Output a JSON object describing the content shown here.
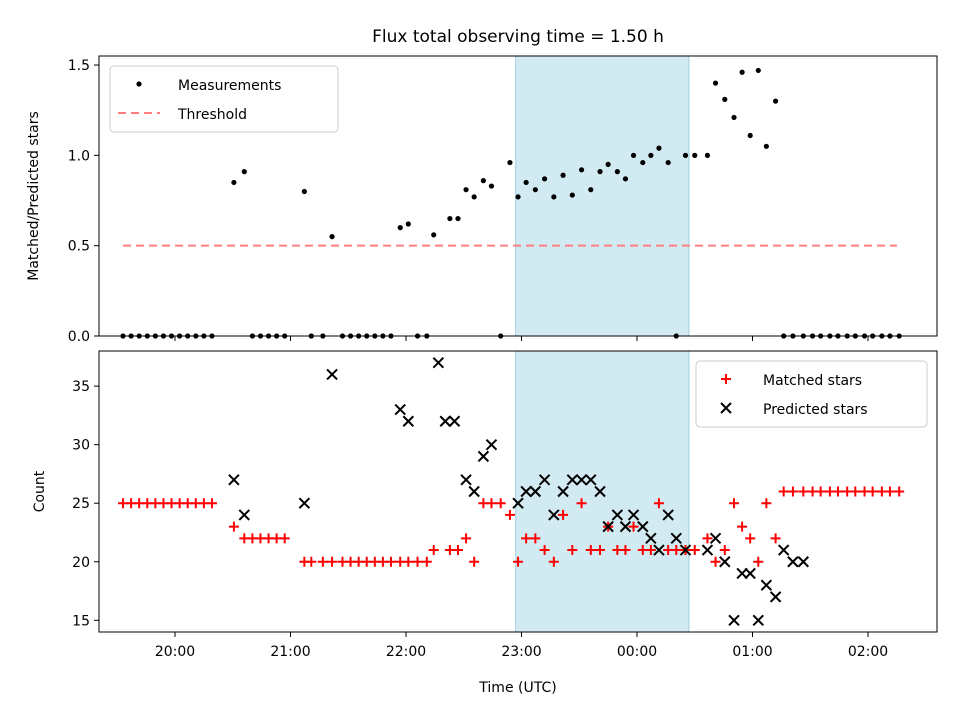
{
  "figure": {
    "title": "Flux total observing time = 1.50 h",
    "xlabel": "Time (UTC)",
    "x_ticks": [
      "20:00",
      "21:00",
      "22:00",
      "23:00",
      "00:00",
      "01:00",
      "02:00"
    ],
    "x_tick_hours": [
      20,
      21,
      22,
      23,
      24,
      25,
      26
    ],
    "highlight_span_hours": [
      22.95,
      24.45
    ],
    "colors": {
      "measurements": "#000000",
      "threshold": "#ff7f7f",
      "matched": "#ff0000",
      "predicted": "#000000",
      "highlight": "#add8e6"
    }
  },
  "chart_data": [
    {
      "type": "scatter",
      "ylabel": "Matched/Predicted stars",
      "ylim": [
        0,
        1.55
      ],
      "y_ticks": [
        "0.0",
        "0.5",
        "1.0",
        "1.5"
      ],
      "y_tick_values": [
        0,
        0.5,
        1.0,
        1.5
      ],
      "legend": {
        "placement": "top-left",
        "entries": [
          "Measurements",
          "Threshold"
        ]
      },
      "threshold": {
        "name": "Threshold",
        "value": 0.5,
        "x_range": [
          19.55,
          26.25
        ]
      },
      "series": [
        {
          "name": "Measurements",
          "x": [
            19.55,
            19.62,
            19.69,
            19.76,
            19.83,
            19.9,
            19.97,
            20.04,
            20.11,
            20.18,
            20.25,
            20.32,
            20.51,
            20.6,
            20.67,
            20.74,
            20.81,
            20.88,
            20.95,
            21.12,
            21.18,
            21.28,
            21.36,
            21.45,
            21.52,
            21.59,
            21.66,
            21.73,
            21.8,
            21.87,
            21.95,
            22.02,
            22.1,
            22.18,
            22.24,
            22.38,
            22.45,
            22.52,
            22.59,
            22.67,
            22.74,
            22.82,
            22.9,
            22.97,
            23.04,
            23.12,
            23.2,
            23.28,
            23.36,
            23.44,
            23.52,
            23.6,
            23.68,
            23.75,
            23.83,
            23.9,
            23.97,
            24.05,
            24.12,
            24.19,
            24.27,
            24.34,
            24.42,
            24.5,
            24.61,
            24.68,
            24.76,
            24.84,
            24.91,
            24.98,
            25.05,
            25.12,
            25.2,
            25.27,
            25.35,
            25.44,
            25.52,
            25.59,
            25.67,
            25.74,
            25.82,
            25.89,
            25.97,
            26.04,
            26.12,
            26.19,
            26.27
          ],
          "y": [
            0,
            0,
            0,
            0,
            0,
            0,
            0,
            0,
            0,
            0,
            0,
            0,
            0.85,
            0.91,
            0,
            0,
            0,
            0,
            0,
            0.8,
            0,
            0,
            0.55,
            0,
            0,
            0,
            0,
            0,
            0,
            0,
            0.6,
            0.62,
            0,
            0,
            0.56,
            0.65,
            0.65,
            0.81,
            0.77,
            0.86,
            0.83,
            0,
            0.96,
            0.77,
            0.85,
            0.81,
            0.87,
            0.77,
            0.89,
            0.78,
            0.92,
            0.81,
            0.91,
            0.95,
            0.91,
            0.87,
            1.0,
            0.96,
            1.0,
            1.04,
            0.96,
            0,
            1.0,
            1.0,
            1.0,
            1.4,
            1.31,
            1.21,
            1.46,
            1.11,
            1.47,
            1.05,
            1.3,
            0,
            0,
            0,
            0,
            0,
            0,
            0,
            0,
            0,
            0,
            0,
            0,
            0,
            0
          ]
        }
      ]
    },
    {
      "type": "scatter",
      "ylabel": "Count",
      "ylim": [
        14,
        38
      ],
      "y_ticks": [
        "15",
        "20",
        "25",
        "30",
        "35"
      ],
      "y_tick_values": [
        15,
        20,
        25,
        30,
        35
      ],
      "legend": {
        "placement": "top-right",
        "entries": [
          "Matched stars",
          "Predicted stars"
        ]
      },
      "series": [
        {
          "name": "Matched stars",
          "x": [
            19.55,
            19.62,
            19.69,
            19.76,
            19.83,
            19.9,
            19.97,
            20.04,
            20.11,
            20.18,
            20.25,
            20.32,
            20.51,
            20.6,
            20.67,
            20.74,
            20.81,
            20.88,
            20.95,
            21.12,
            21.18,
            21.28,
            21.36,
            21.45,
            21.52,
            21.59,
            21.66,
            21.73,
            21.8,
            21.87,
            21.95,
            22.02,
            22.1,
            22.18,
            22.24,
            22.38,
            22.45,
            22.52,
            22.59,
            22.67,
            22.74,
            22.82,
            22.9,
            22.97,
            23.04,
            23.12,
            23.2,
            23.28,
            23.36,
            23.44,
            23.52,
            23.6,
            23.68,
            23.75,
            23.83,
            23.9,
            23.97,
            24.05,
            24.12,
            24.19,
            24.27,
            24.34,
            24.42,
            24.5,
            24.61,
            24.68,
            24.76,
            24.84,
            24.91,
            24.98,
            25.05,
            25.12,
            25.2,
            25.27,
            25.35,
            25.44,
            25.52,
            25.59,
            25.67,
            25.74,
            25.82,
            25.89,
            25.97,
            26.04,
            26.12,
            26.19,
            26.27
          ],
          "y": [
            25,
            25,
            25,
            25,
            25,
            25,
            25,
            25,
            25,
            25,
            25,
            25,
            23,
            22,
            22,
            22,
            22,
            22,
            22,
            20,
            20,
            20,
            20,
            20,
            20,
            20,
            20,
            20,
            20,
            20,
            20,
            20,
            20,
            20,
            21,
            21,
            21,
            22,
            20,
            25,
            25,
            25,
            24,
            20,
            22,
            22,
            21,
            20,
            24,
            21,
            25,
            21,
            21,
            23,
            21,
            21,
            23,
            21,
            21,
            25,
            21,
            21,
            21,
            21,
            22,
            20,
            21,
            25,
            23,
            22,
            20,
            25,
            22,
            26,
            26,
            26,
            26,
            26,
            26,
            26,
            26,
            26,
            26,
            26,
            26,
            26,
            26
          ]
        },
        {
          "name": "Predicted stars",
          "x": [
            20.51,
            20.6,
            21.12,
            21.36,
            21.95,
            22.02,
            22.28,
            22.34,
            22.42,
            22.52,
            22.59,
            22.67,
            22.74,
            22.97,
            23.04,
            23.12,
            23.2,
            23.28,
            23.36,
            23.44,
            23.52,
            23.6,
            23.68,
            23.75,
            23.83,
            23.9,
            23.97,
            24.05,
            24.12,
            24.19,
            24.27,
            24.34,
            24.42,
            24.61,
            24.68,
            24.76,
            24.84,
            24.91,
            24.98,
            25.05,
            25.12,
            25.2,
            25.27,
            25.35,
            25.44
          ],
          "y": [
            27,
            24,
            25,
            36,
            33,
            32,
            37,
            32,
            32,
            27,
            26,
            29,
            30,
            25,
            26,
            26,
            27,
            24,
            26,
            27,
            27,
            27,
            26,
            23,
            24,
            23,
            24,
            23,
            22,
            21,
            24,
            22,
            21,
            21,
            22,
            20,
            15,
            19,
            19,
            15,
            18,
            17,
            21,
            20,
            20
          ]
        }
      ]
    }
  ]
}
